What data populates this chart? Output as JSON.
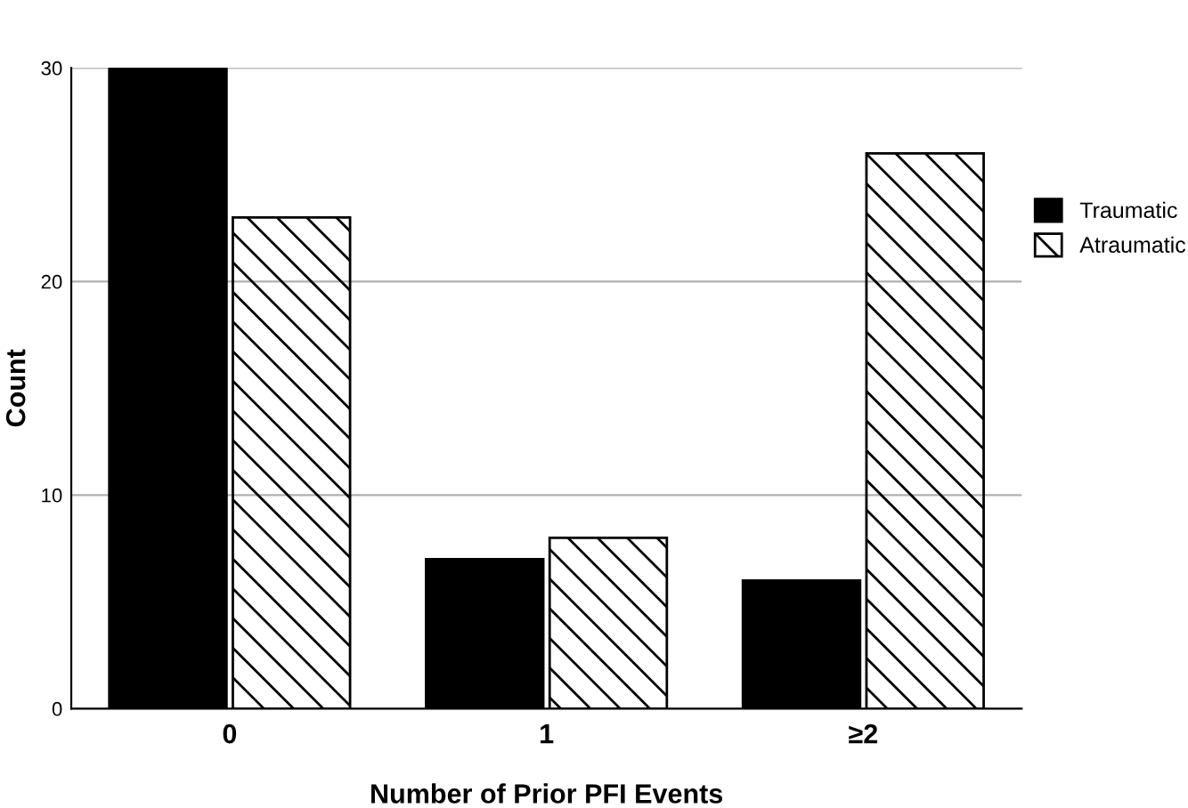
{
  "chart_data": {
    "type": "bar",
    "xlabel": "Number of Prior PFI Events",
    "ylabel": "Count",
    "categories": [
      "0",
      "1",
      "≥2"
    ],
    "series": [
      {
        "name": "Traumatic",
        "color": "#000000",
        "values": [
          30,
          7,
          6
        ]
      },
      {
        "name": "Atraumatic",
        "color": "#000000",
        "values": [
          23,
          8,
          26
        ]
      }
    ],
    "ylim": [
      0,
      30
    ],
    "yticks": [
      0,
      10,
      20,
      30
    ],
    "grid": "y",
    "legend": "right"
  }
}
